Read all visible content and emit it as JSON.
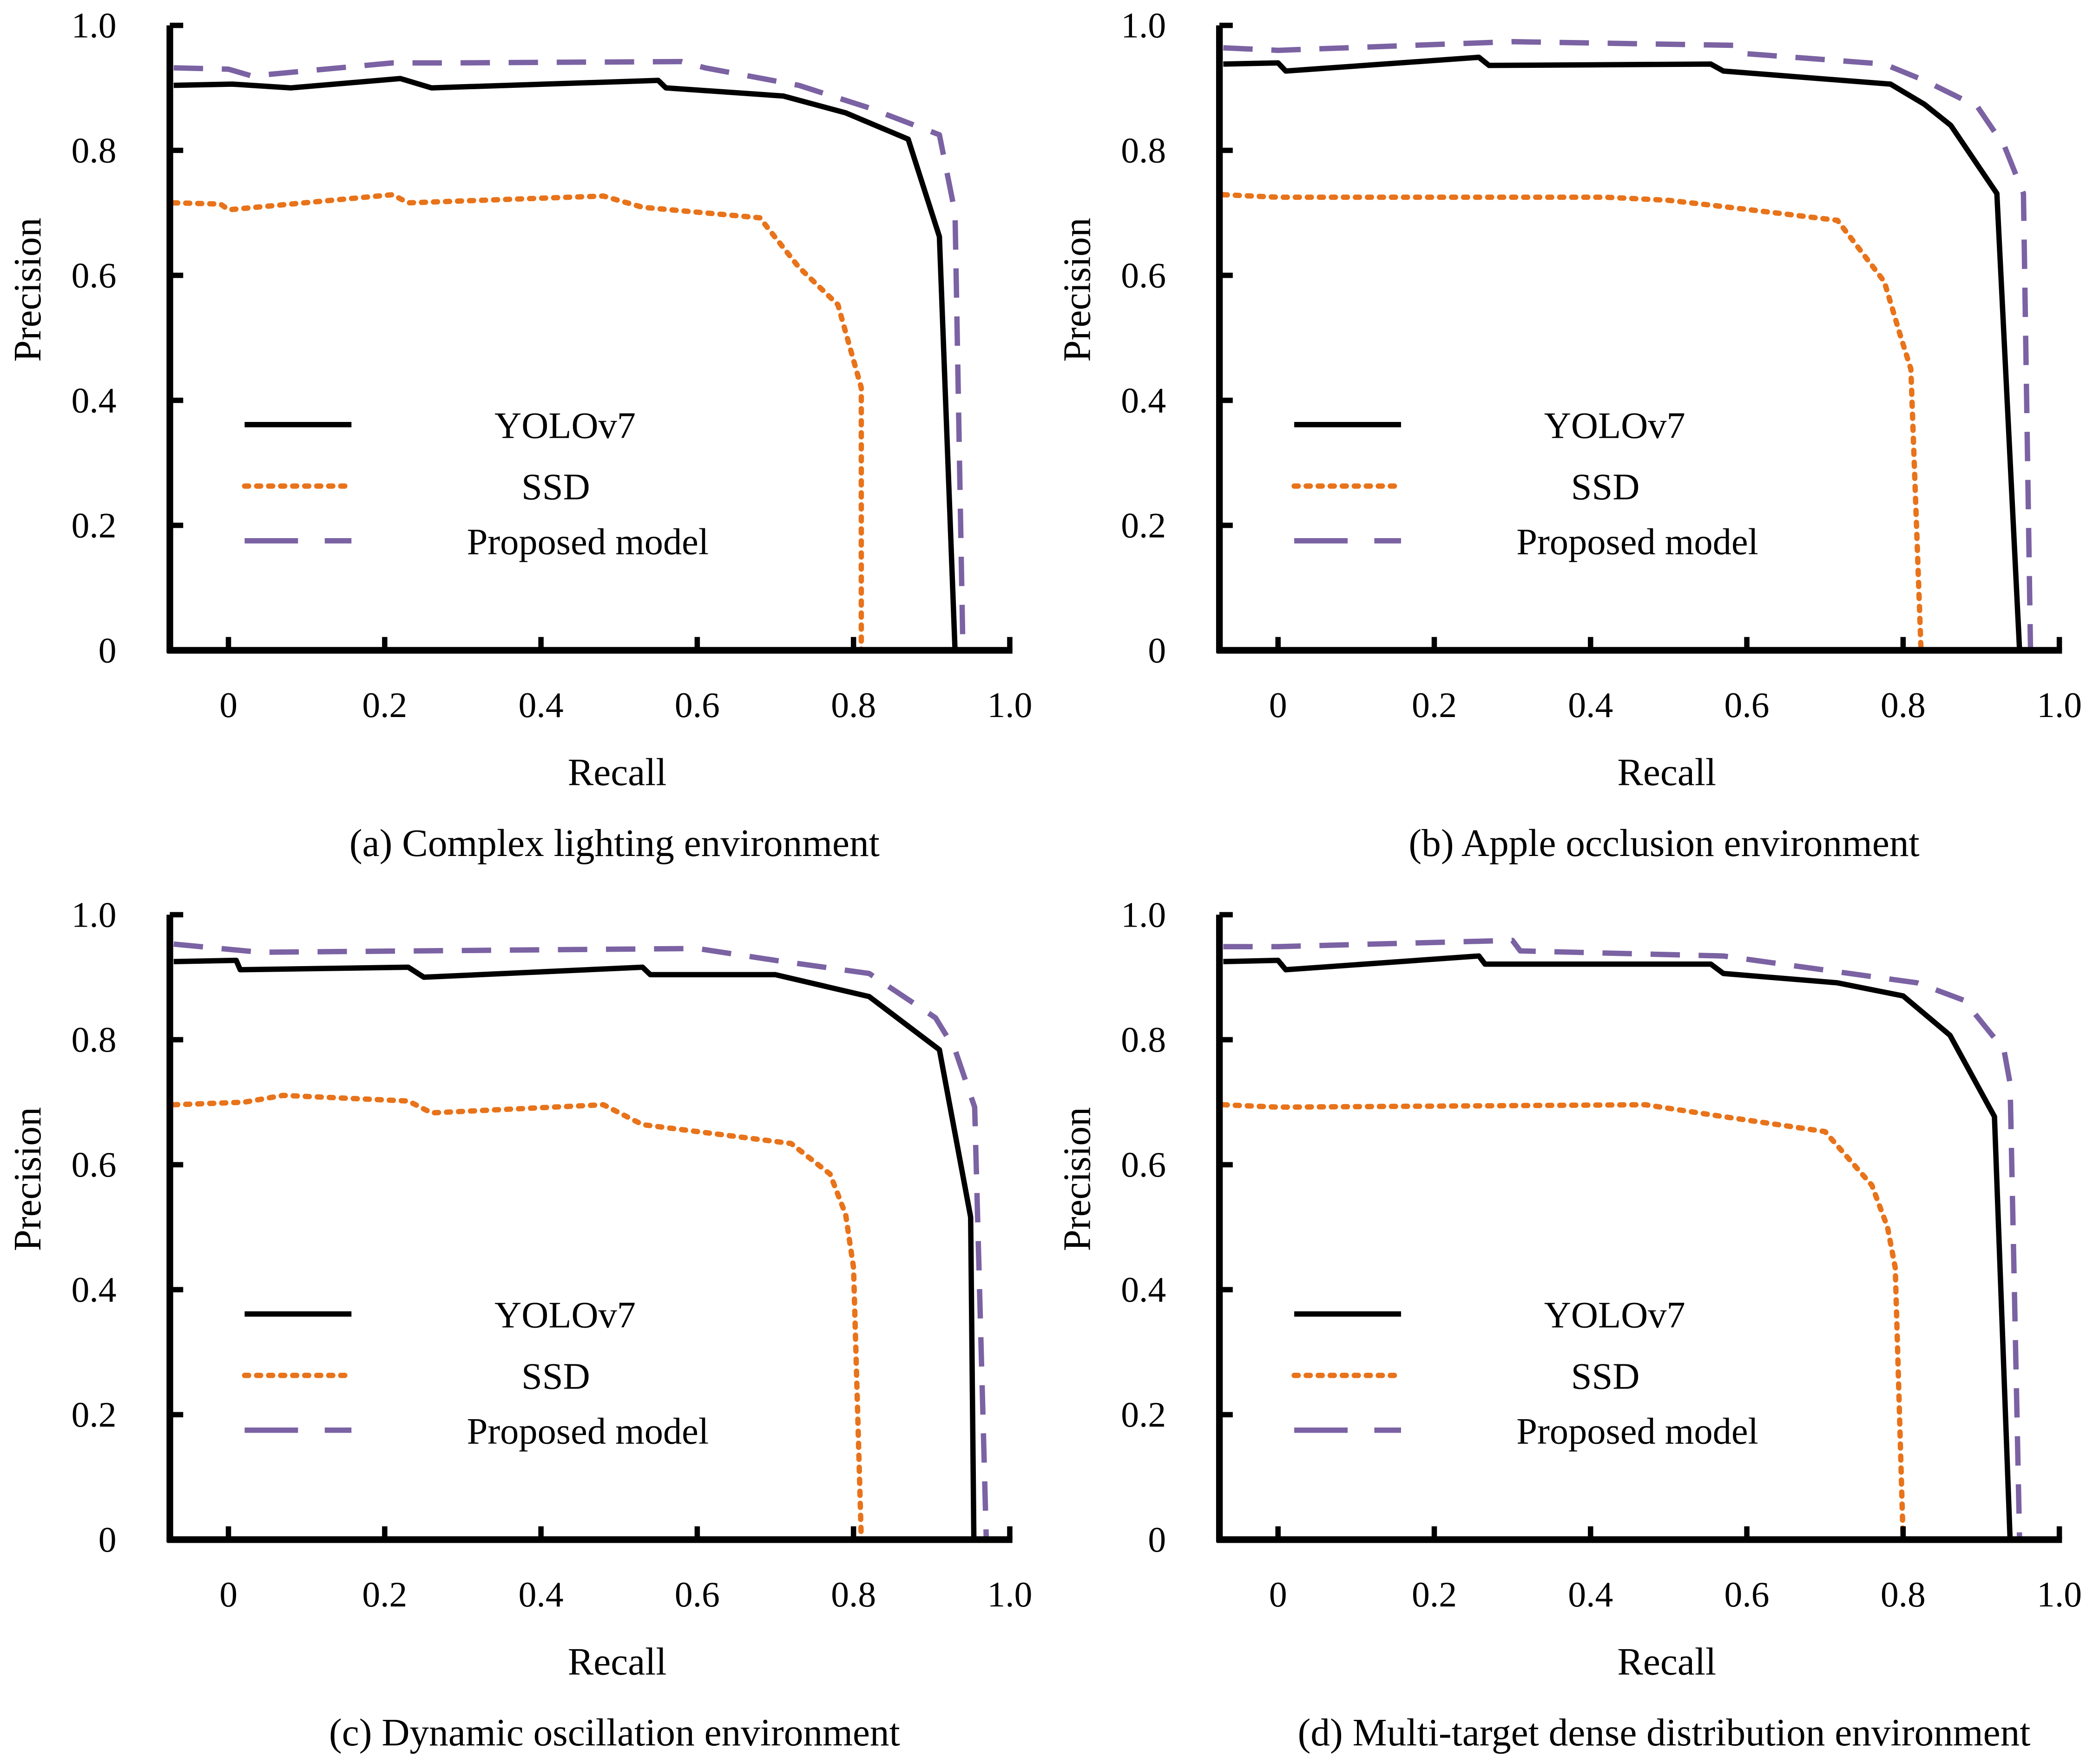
{
  "colors": {
    "YOLOv7": "#000000",
    "SSD": "#e8731a",
    "Proposed model": "#7b62a3"
  },
  "chart_data": [
    {
      "type": "line",
      "caption": "(a) Complex lighting environment",
      "xlabel": "Recall",
      "ylabel": "Precision",
      "xlim": [
        -0.075,
        1.0
      ],
      "ylim": [
        0,
        1.0
      ],
      "xticks": [
        "0",
        "0.2",
        "0.4",
        "0.6",
        "0.8",
        "1.0"
      ],
      "yticks": [
        "0",
        "0.2",
        "0.4",
        "0.6",
        "0.8",
        "1.0"
      ],
      "legend": "center-left",
      "series": [
        {
          "name": "YOLOv7",
          "style": "solid",
          "points": [
            [
              -0.07,
              0.904
            ],
            [
              0.005,
              0.906
            ],
            [
              0.08,
              0.9
            ],
            [
              0.22,
              0.915
            ],
            [
              0.26,
              0.9
            ],
            [
              0.55,
              0.912
            ],
            [
              0.56,
              0.9
            ],
            [
              0.71,
              0.887
            ],
            [
              0.79,
              0.86
            ],
            [
              0.87,
              0.818
            ],
            [
              0.91,
              0.662
            ],
            [
              0.93,
              0.0
            ]
          ]
        },
        {
          "name": "SSD",
          "style": "dotted",
          "points": [
            [
              -0.07,
              0.716
            ],
            [
              -0.01,
              0.714
            ],
            [
              0.0,
              0.705
            ],
            [
              0.21,
              0.729
            ],
            [
              0.23,
              0.716
            ],
            [
              0.48,
              0.727
            ],
            [
              0.53,
              0.709
            ],
            [
              0.68,
              0.692
            ],
            [
              0.73,
              0.613
            ],
            [
              0.78,
              0.553
            ],
            [
              0.8,
              0.464
            ],
            [
              0.81,
              0.42
            ],
            [
              0.81,
              0.0
            ]
          ]
        },
        {
          "name": "Proposed model",
          "style": "dashed",
          "points": [
            [
              -0.07,
              0.932
            ],
            [
              0.0,
              0.93
            ],
            [
              0.03,
              0.919
            ],
            [
              0.21,
              0.94
            ],
            [
              0.29,
              0.94
            ],
            [
              0.58,
              0.942
            ],
            [
              0.61,
              0.932
            ],
            [
              0.73,
              0.904
            ],
            [
              0.82,
              0.868
            ],
            [
              0.91,
              0.825
            ],
            [
              0.93,
              0.7
            ],
            [
              0.94,
              0.0
            ]
          ]
        }
      ]
    },
    {
      "type": "line",
      "caption": "(b) Apple occlusion environment",
      "xlabel": "Recall",
      "ylabel": "Precision",
      "xlim": [
        -0.075,
        1.0
      ],
      "ylim": [
        0,
        1.0
      ],
      "xticks": [
        "0",
        "0.2",
        "0.4",
        "0.6",
        "0.8",
        "1.0"
      ],
      "yticks": [
        "0",
        "0.2",
        "0.4",
        "0.6",
        "0.8",
        "1.0"
      ],
      "legend": "center-left",
      "series": [
        {
          "name": "YOLOv7",
          "style": "solid",
          "points": [
            [
              -0.07,
              0.938
            ],
            [
              0.0,
              0.94
            ],
            [
              0.01,
              0.927
            ],
            [
              0.257,
              0.949
            ],
            [
              0.27,
              0.936
            ],
            [
              0.554,
              0.938
            ],
            [
              0.57,
              0.927
            ],
            [
              0.784,
              0.906
            ],
            [
              0.827,
              0.874
            ],
            [
              0.861,
              0.84
            ],
            [
              0.92,
              0.731
            ],
            [
              0.949,
              0.0
            ]
          ]
        },
        {
          "name": "SSD",
          "style": "dotted",
          "points": [
            [
              -0.07,
              0.729
            ],
            [
              0.0,
              0.725
            ],
            [
              0.42,
              0.725
            ],
            [
              0.5,
              0.72
            ],
            [
              0.57,
              0.71
            ],
            [
              0.716,
              0.688
            ],
            [
              0.776,
              0.59
            ],
            [
              0.796,
              0.506
            ],
            [
              0.81,
              0.45
            ],
            [
              0.823,
              0.0
            ]
          ]
        },
        {
          "name": "Proposed model",
          "style": "dashed",
          "points": [
            [
              -0.07,
              0.964
            ],
            [
              0.0,
              0.96
            ],
            [
              0.3,
              0.974
            ],
            [
              0.59,
              0.968
            ],
            [
              0.597,
              0.955
            ],
            [
              0.776,
              0.938
            ],
            [
              0.827,
              0.912
            ],
            [
              0.895,
              0.87
            ],
            [
              0.93,
              0.806
            ],
            [
              0.954,
              0.731
            ],
            [
              0.963,
              0.0
            ]
          ]
        }
      ]
    },
    {
      "type": "line",
      "caption": "(c) Dynamic oscillation environment",
      "xlabel": "Recall",
      "ylabel": "Precision",
      "xlim": [
        -0.075,
        1.0
      ],
      "ylim": [
        0,
        1.0
      ],
      "xticks": [
        "0",
        "0.2",
        "0.4",
        "0.6",
        "0.8",
        "1.0"
      ],
      "yticks": [
        "0",
        "0.2",
        "0.4",
        "0.6",
        "0.8",
        "1.0"
      ],
      "legend": "center-left",
      "series": [
        {
          "name": "YOLOv7",
          "style": "solid",
          "points": [
            [
              -0.07,
              0.925
            ],
            [
              0.01,
              0.927
            ],
            [
              0.015,
              0.912
            ],
            [
              0.23,
              0.916
            ],
            [
              0.25,
              0.9
            ],
            [
              0.53,
              0.916
            ],
            [
              0.54,
              0.904
            ],
            [
              0.7,
              0.904
            ],
            [
              0.82,
              0.869
            ],
            [
              0.91,
              0.784
            ],
            [
              0.95,
              0.516
            ],
            [
              0.954,
              0.0
            ]
          ]
        },
        {
          "name": "SSD",
          "style": "dotted",
          "points": [
            [
              -0.07,
              0.696
            ],
            [
              0.02,
              0.7
            ],
            [
              0.07,
              0.711
            ],
            [
              0.23,
              0.702
            ],
            [
              0.26,
              0.683
            ],
            [
              0.48,
              0.696
            ],
            [
              0.53,
              0.664
            ],
            [
              0.72,
              0.634
            ],
            [
              0.77,
              0.585
            ],
            [
              0.79,
              0.52
            ],
            [
              0.8,
              0.435
            ],
            [
              0.81,
              0.0
            ]
          ]
        },
        {
          "name": "Proposed model",
          "style": "dashed",
          "points": [
            [
              -0.07,
              0.953
            ],
            [
              0.04,
              0.94
            ],
            [
              0.6,
              0.946
            ],
            [
              0.7,
              0.927
            ],
            [
              0.82,
              0.906
            ],
            [
              0.905,
              0.835
            ],
            [
              0.93,
              0.784
            ],
            [
              0.955,
              0.692
            ],
            [
              0.97,
              0.0
            ]
          ]
        }
      ]
    },
    {
      "type": "line",
      "caption": "(d) Multi-target dense distribution environment",
      "xlabel": "Recall",
      "ylabel": "Precision",
      "xlim": [
        -0.075,
        1.0
      ],
      "ylim": [
        0,
        1.0
      ],
      "xticks": [
        "0",
        "0.2",
        "0.4",
        "0.6",
        "0.8",
        "1.0"
      ],
      "yticks": [
        "0",
        "0.2",
        "0.4",
        "0.6",
        "0.8",
        "1.0"
      ],
      "legend": "center-left",
      "series": [
        {
          "name": "YOLOv7",
          "style": "solid",
          "points": [
            [
              -0.07,
              0.925
            ],
            [
              0.0,
              0.927
            ],
            [
              0.01,
              0.912
            ],
            [
              0.257,
              0.934
            ],
            [
              0.265,
              0.921
            ],
            [
              0.554,
              0.921
            ],
            [
              0.57,
              0.906
            ],
            [
              0.716,
              0.891
            ],
            [
              0.8,
              0.87
            ],
            [
              0.86,
              0.807
            ],
            [
              0.917,
              0.677
            ],
            [
              0.937,
              0.0
            ]
          ]
        },
        {
          "name": "SSD",
          "style": "dotted",
          "points": [
            [
              -0.07,
              0.696
            ],
            [
              0.0,
              0.692
            ],
            [
              0.47,
              0.696
            ],
            [
              0.554,
              0.68
            ],
            [
              0.7,
              0.653
            ],
            [
              0.76,
              0.567
            ],
            [
              0.78,
              0.5
            ],
            [
              0.79,
              0.435
            ],
            [
              0.8,
              0.0
            ]
          ]
        },
        {
          "name": "Proposed model",
          "style": "dashed",
          "points": [
            [
              -0.07,
              0.949
            ],
            [
              0.0,
              0.949
            ],
            [
              0.3,
              0.959
            ],
            [
              0.31,
              0.942
            ],
            [
              0.57,
              0.934
            ],
            [
              0.818,
              0.891
            ],
            [
              0.878,
              0.863
            ],
            [
              0.929,
              0.784
            ],
            [
              0.937,
              0.73
            ],
            [
              0.949,
              0.0
            ]
          ]
        }
      ]
    }
  ]
}
